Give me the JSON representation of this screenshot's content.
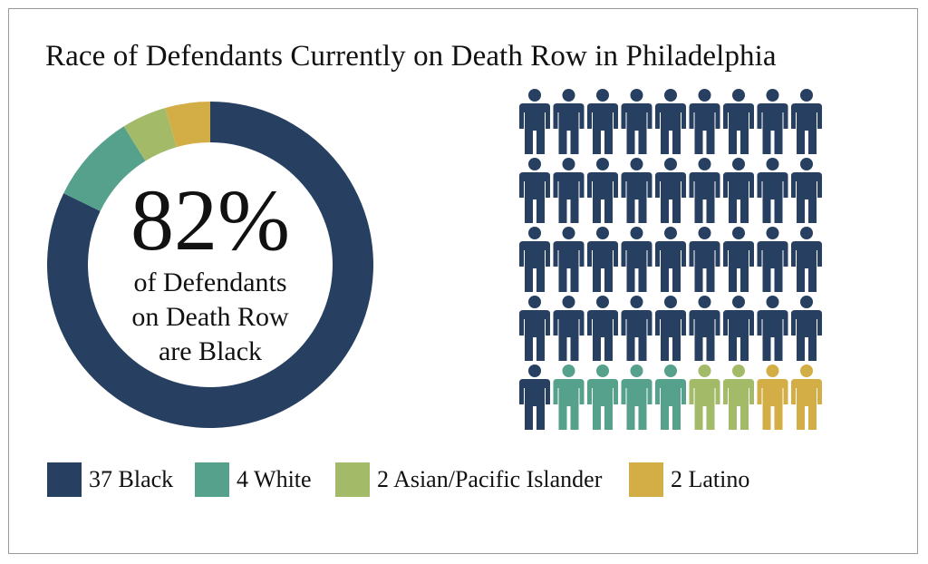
{
  "chart_data": {
    "type": "pie",
    "style": "donut-and-pictogram",
    "title": "Race of Defendants Currently on Death Row in Philadelphia",
    "center_text": {
      "value": "82%",
      "lines": [
        "of Defendants",
        "on Death Row",
        "are Black"
      ]
    },
    "slices": [
      {
        "label": "Black",
        "value": 37,
        "color": "#273F60"
      },
      {
        "label": "White",
        "value": 4,
        "color": "#56A18C"
      },
      {
        "label": "Asian/Pacific Islander",
        "value": 2,
        "color": "#A3BB68"
      },
      {
        "label": "Latino",
        "value": 2,
        "color": "#D3AE47"
      }
    ],
    "legend": [
      {
        "text": "37 Black",
        "color": "#273F60"
      },
      {
        "text": "4 White",
        "color": "#56A18C"
      },
      {
        "text": "2 Asian/Pacific Islander",
        "color": "#A3BB68"
      },
      {
        "text": "2 Latino",
        "color": "#D3AE47"
      }
    ],
    "pictogram": {
      "columns": 9,
      "rows": 5,
      "icon": "person-icon"
    },
    "legend_position": "bottom"
  }
}
